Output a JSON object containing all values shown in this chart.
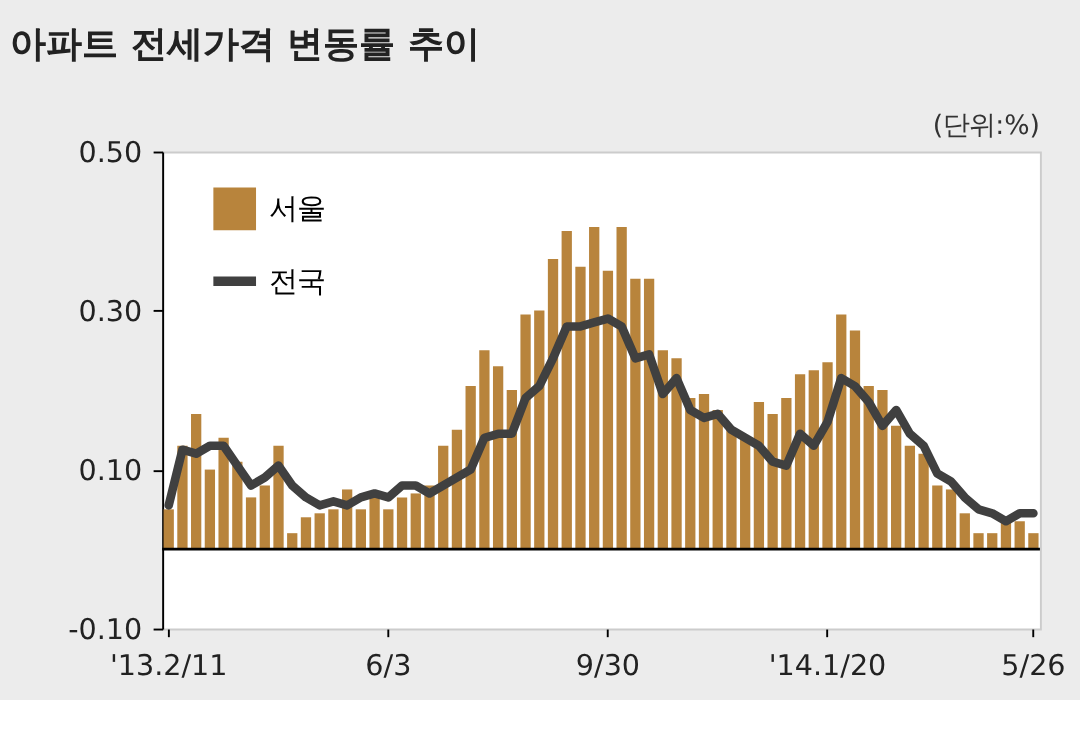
{
  "chart_data": {
    "type": "bar",
    "title": "아파트 전세가격 변동률 추이",
    "annotations": [
      "(단위:%)"
    ],
    "categories": [
      "'13.2/11",
      null,
      null,
      null,
      null,
      null,
      null,
      null,
      null,
      null,
      null,
      null,
      null,
      null,
      null,
      null,
      "6/3",
      null,
      null,
      null,
      null,
      null,
      null,
      null,
      null,
      null,
      null,
      null,
      null,
      null,
      null,
      null,
      "9/30",
      null,
      null,
      null,
      null,
      null,
      null,
      null,
      null,
      null,
      null,
      null,
      null,
      null,
      null,
      null,
      "'14.1/20",
      null,
      null,
      null,
      null,
      null,
      null,
      null,
      null,
      null,
      null,
      null,
      null,
      null,
      null,
      "5/26"
    ],
    "series": [
      {
        "name": "서울",
        "color": "#b8843c",
        "values": [
          0.05,
          0.13,
          0.17,
          0.1,
          0.14,
          0.11,
          0.065,
          0.08,
          0.13,
          0.02,
          0.04,
          0.045,
          0.05,
          0.075,
          0.05,
          0.065,
          0.05,
          0.065,
          0.07,
          0.08,
          0.13,
          0.15,
          0.205,
          0.25,
          0.23,
          0.2,
          0.295,
          0.3,
          0.365,
          0.4,
          0.355,
          0.405,
          0.35,
          0.405,
          0.34,
          0.34,
          0.25,
          0.24,
          0.19,
          0.195,
          0.175,
          0.15,
          0.14,
          0.185,
          0.17,
          0.19,
          0.22,
          0.225,
          0.235,
          0.295,
          0.275,
          0.205,
          0.2,
          0.155,
          0.13,
          0.12,
          0.08,
          0.075,
          0.045,
          0.02,
          0.02,
          0.035,
          0.035,
          0.02
        ]
      },
      {
        "name": "전국",
        "type": "line",
        "color": "#404040",
        "values": [
          0.055,
          0.125,
          0.12,
          0.13,
          0.13,
          0.105,
          0.08,
          0.09,
          0.105,
          0.08,
          0.065,
          0.055,
          0.06,
          0.055,
          0.065,
          0.07,
          0.065,
          0.08,
          0.08,
          0.07,
          0.08,
          0.09,
          0.1,
          0.14,
          0.145,
          0.145,
          0.19,
          0.205,
          0.24,
          0.28,
          0.28,
          0.285,
          0.29,
          0.28,
          0.24,
          0.245,
          0.195,
          0.215,
          0.175,
          0.165,
          0.17,
          0.15,
          0.14,
          0.13,
          0.11,
          0.105,
          0.145,
          0.13,
          0.16,
          0.215,
          0.205,
          0.185,
          0.155,
          0.175,
          0.145,
          0.13,
          0.095,
          0.085,
          0.065,
          0.05,
          0.045,
          0.035,
          0.045,
          0.045
        ]
      }
    ],
    "ylim": [
      -0.1,
      0.5
    ],
    "yticks": [
      {
        "value": -0.1,
        "label": "-0.10"
      },
      {
        "value": 0.1,
        "label": "0.10"
      },
      {
        "value": 0.3,
        "label": "0.30"
      },
      {
        "value": 0.5,
        "label": "0.50"
      }
    ],
    "ref_lines": [
      {
        "axis": "y",
        "value": 0
      }
    ],
    "grid": false,
    "legend": "top left",
    "marker": "none",
    "line_style": "solid"
  }
}
